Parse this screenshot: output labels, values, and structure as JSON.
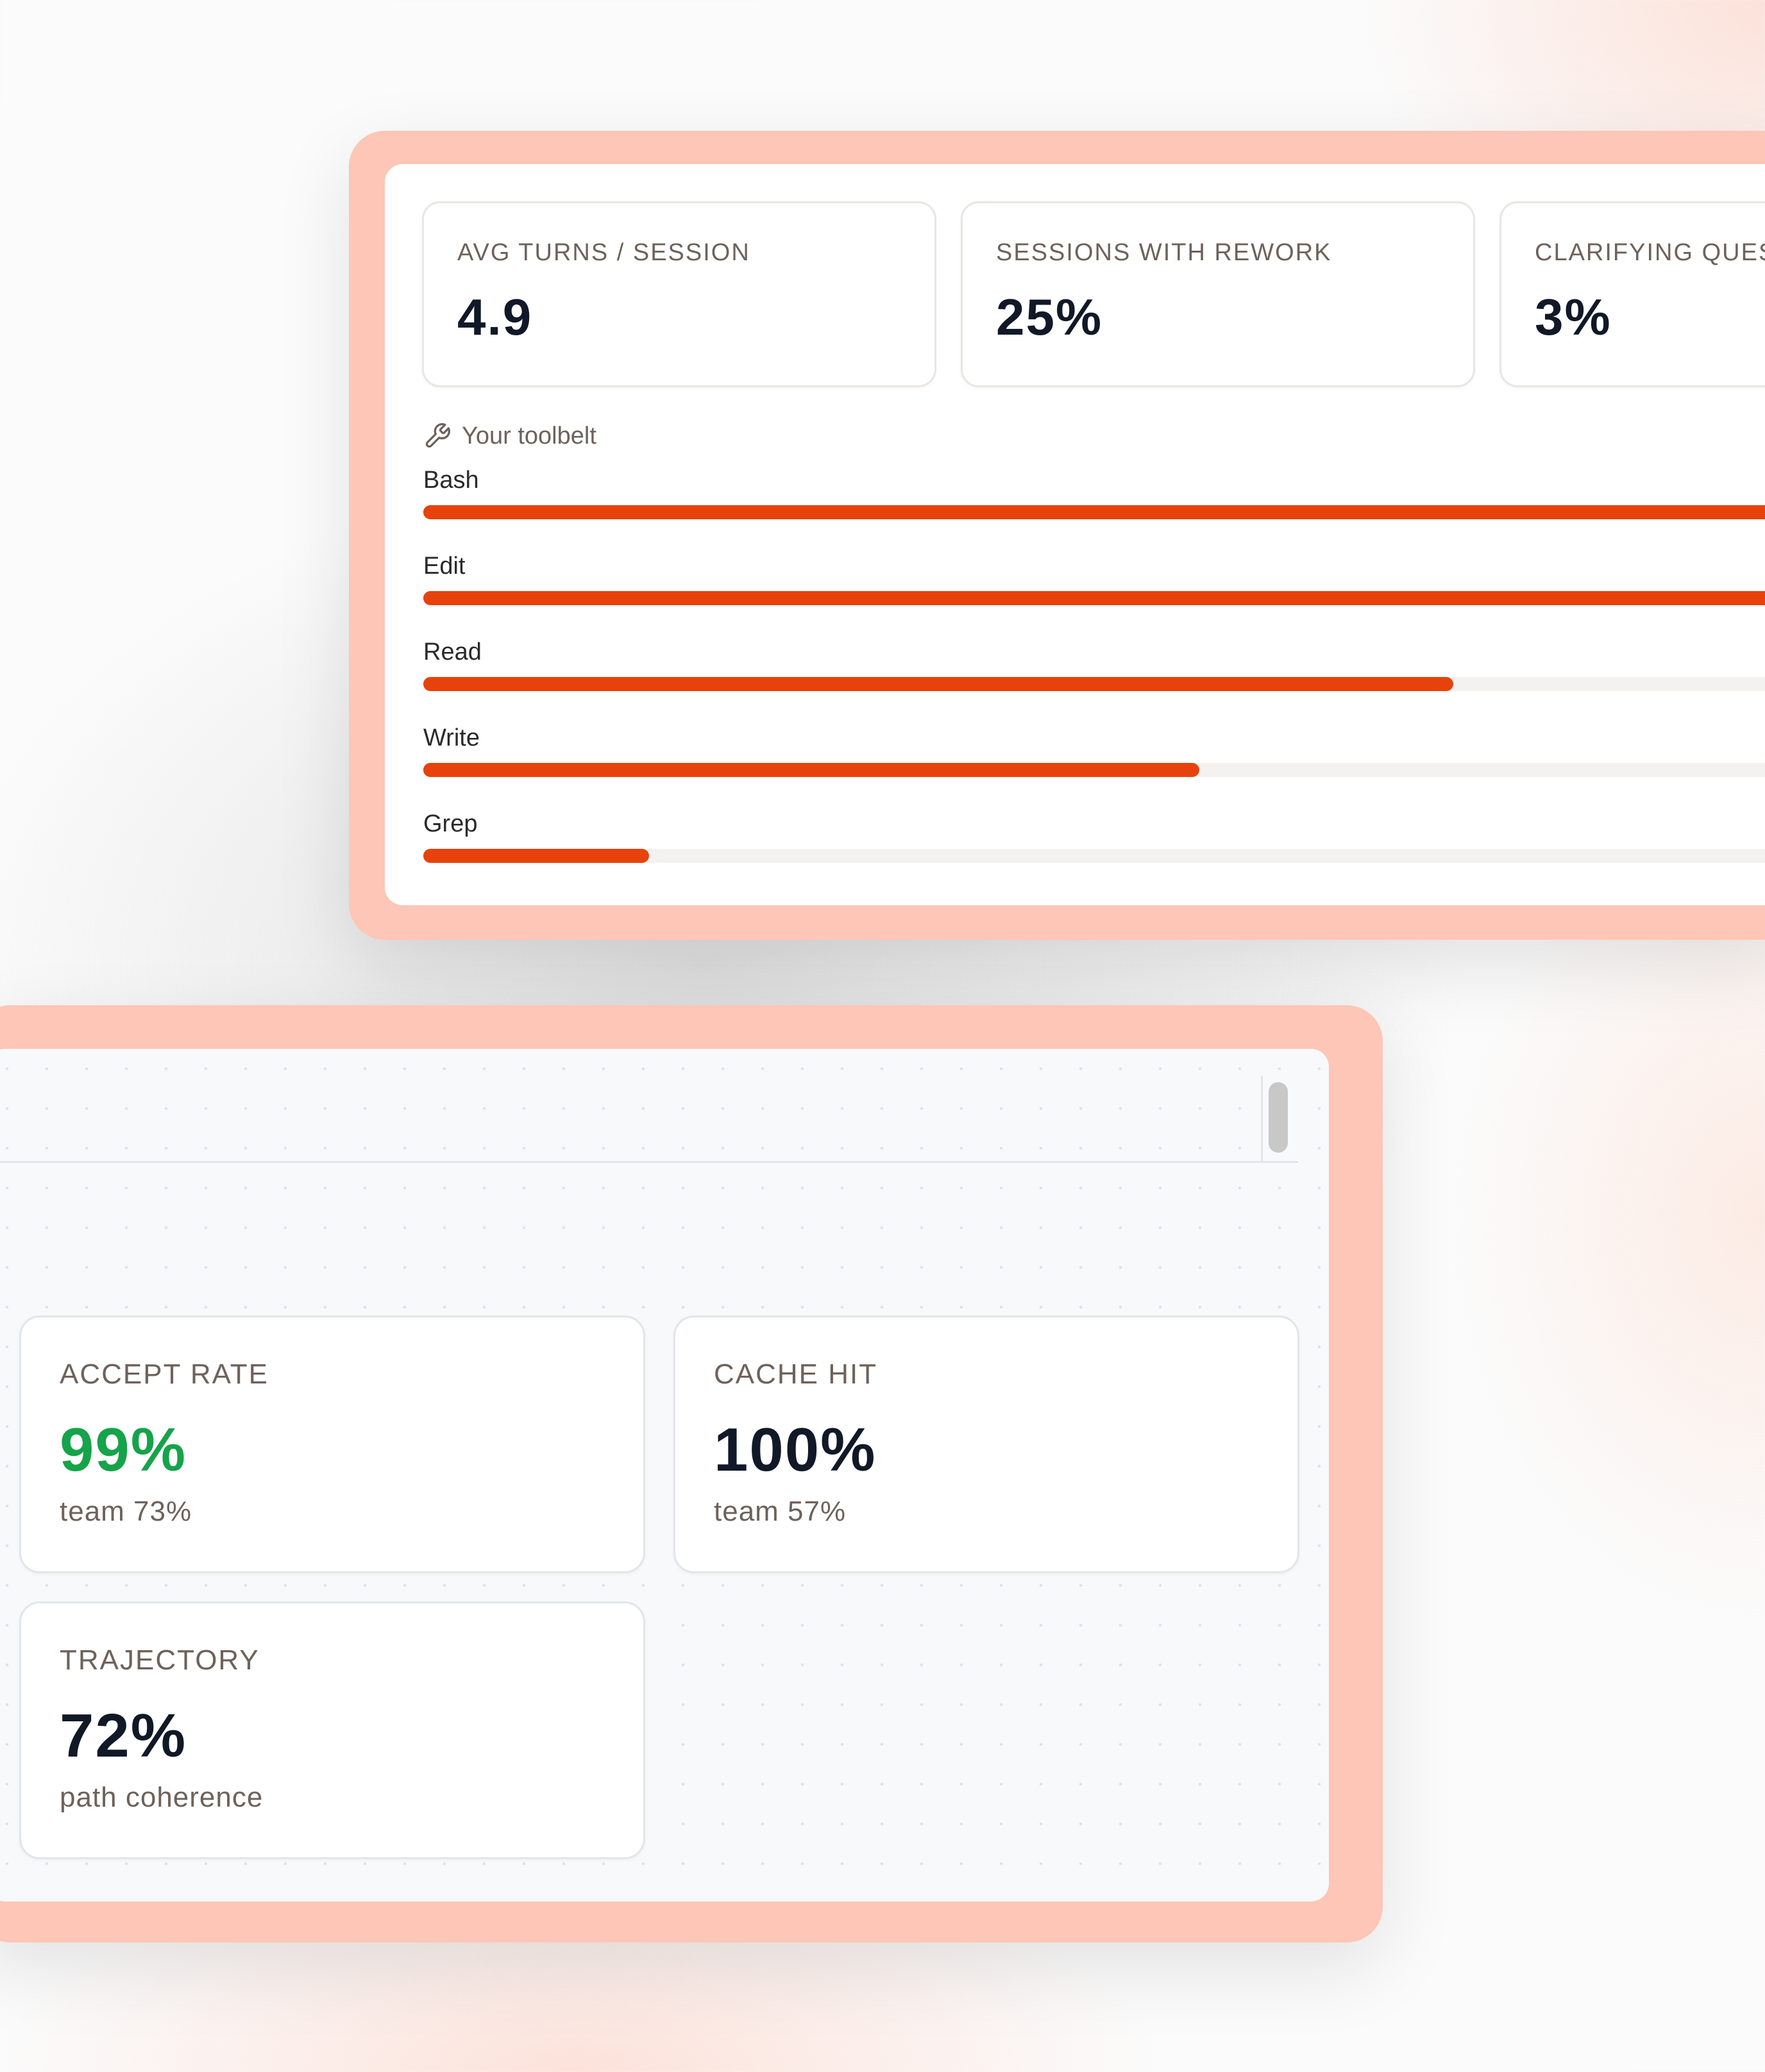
{
  "stats": [
    {
      "label": "AVG TURNS / SESSION",
      "value": "4.9"
    },
    {
      "label": "SESSIONS WITH REWORK",
      "value": "25%"
    },
    {
      "label": "CLARIFYING QUES",
      "value": "3%"
    }
  ],
  "toolbelt": {
    "title": "Your toolbelt",
    "icon": "wrench-icon",
    "tools": [
      {
        "name": "Bash",
        "fraction": 1.0
      },
      {
        "name": "Edit",
        "fraction": 1.0
      },
      {
        "name": "Read",
        "fraction": 0.73
      },
      {
        "name": "Write",
        "fraction": 0.55
      },
      {
        "name": "Grep",
        "fraction": 0.16
      }
    ]
  },
  "metrics": [
    {
      "label": "ACCEPT RATE",
      "value": "99%",
      "sub": "team 73%",
      "status": "good"
    },
    {
      "label": "CACHE HIT",
      "value": "100%",
      "sub": "team 57%",
      "status": "neutral"
    },
    {
      "label": "TRAJECTORY",
      "value": "72%",
      "sub": "path coherence",
      "status": "neutral"
    }
  ],
  "colors": {
    "accent": "#e8420c",
    "frame": "#fdc6b6",
    "good": "#16a34a",
    "value_text": "#111827",
    "muted_text": "#6e625b"
  }
}
